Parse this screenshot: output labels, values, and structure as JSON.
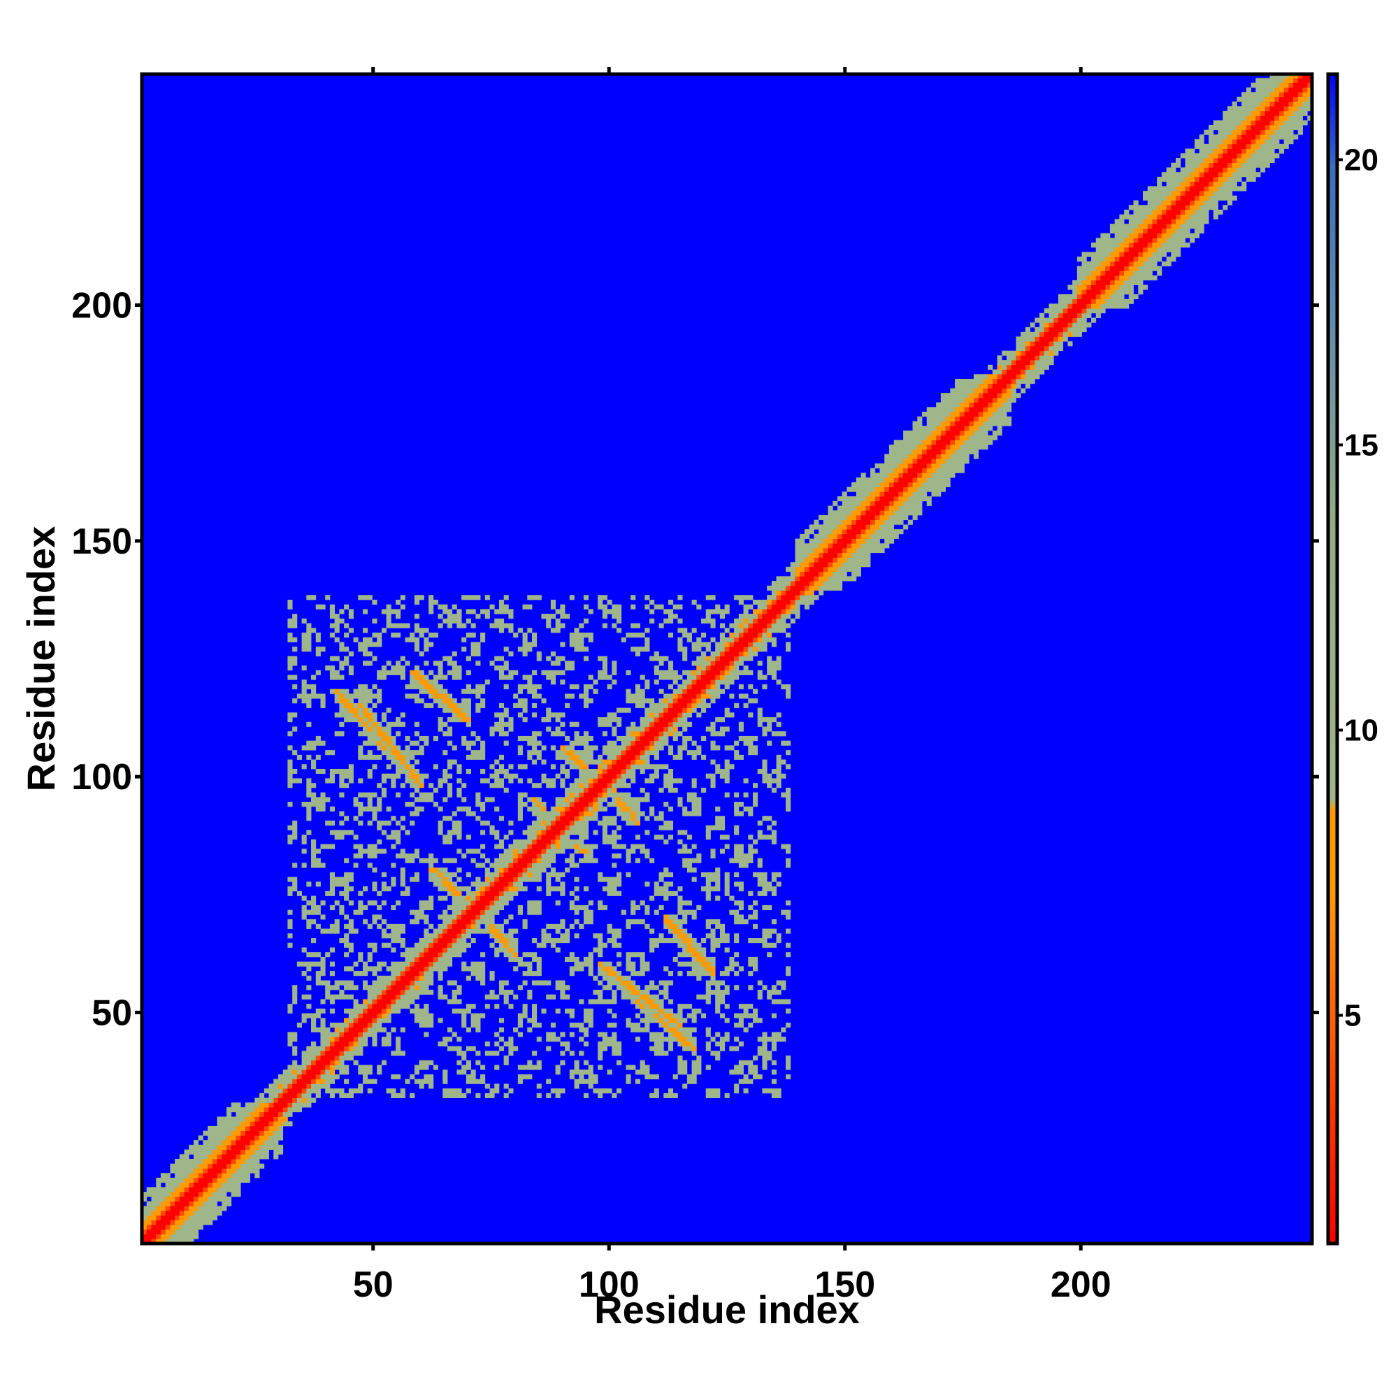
{
  "chart_data": {
    "type": "heatmap",
    "title": "",
    "xlabel": "Residue index",
    "ylabel": "Residue index",
    "x_range": [
      1,
      249
    ],
    "y_range": [
      1,
      249
    ],
    "x_ticks": [
      50,
      100,
      150,
      200
    ],
    "y_ticks": [
      50,
      100,
      150,
      200
    ],
    "colorbar": {
      "range": [
        1,
        21.5
      ],
      "ticks": [
        5,
        10,
        15,
        20
      ],
      "placement": "right",
      "colors": {
        "near": "#ff0000",
        "mid": "#ff9a00",
        "sage": "#9fb58a",
        "far": "#0000ff",
        "top": "#3a6fc0"
      }
    },
    "structure": {
      "diagonal_band": "residues 1-249, distance < 5 along i=j",
      "helix_segments": [
        [
          1,
          30
        ],
        [
          140,
          185
        ],
        [
          200,
          249
        ]
      ],
      "contact_stripes": [
        {
          "x": [
            47,
            60
          ],
          "y": [
            98,
            115
          ],
          "orientation": "anti"
        },
        {
          "x": [
            58,
            70
          ],
          "y": [
            112,
            122
          ],
          "orientation": "anti"
        },
        {
          "x": [
            84,
            94
          ],
          "y": [
            84,
            95
          ],
          "orientation": "anti"
        },
        {
          "x": [
            90,
            105
          ],
          "y": [
            92,
            106
          ],
          "orientation": "anti"
        },
        {
          "x": [
            63,
            80
          ],
          "y": [
            62,
            80
          ],
          "orientation": "anti"
        },
        {
          "x": [
            98,
            118
          ],
          "y": [
            42,
            60
          ],
          "orientation": "anti"
        },
        {
          "x": [
            112,
            122
          ],
          "y": [
            58,
            70
          ],
          "orientation": "anti"
        }
      ],
      "contact_region": {
        "x": [
          32,
          138
        ],
        "y": [
          32,
          138
        ]
      },
      "background": "far"
    }
  }
}
